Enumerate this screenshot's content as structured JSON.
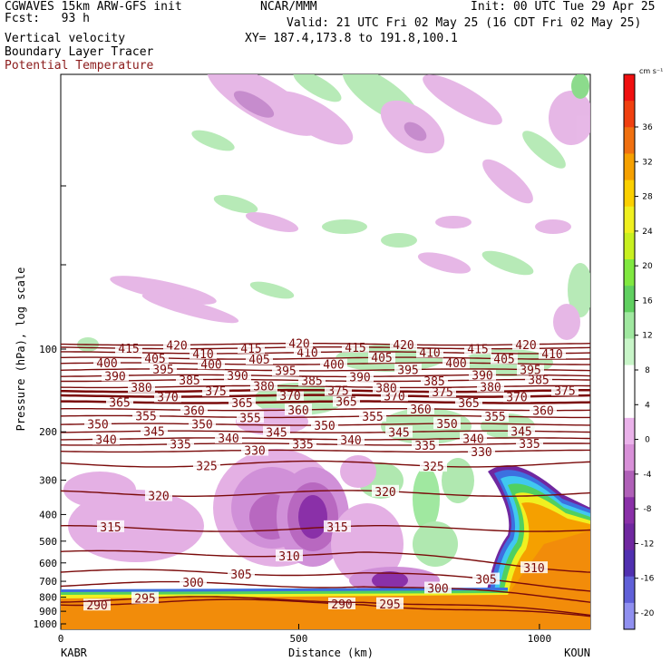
{
  "header": {
    "model": "CGWAVES 15km ARW-GFS init",
    "fcst": "Fcst:   93 h",
    "org": "NCAR/MMM",
    "init": "Init: 00 UTC Tue 29 Apr 25",
    "valid": "Valid: 21 UTC Fri 02 May 25 (16 CDT Fri 02 May 25)",
    "xy": "XY= 187.4,173.8 to 191.8,100.1",
    "field1": "Vertical velocity",
    "field2": "Boundary Layer Tracer",
    "field3": "Potential Temperature"
  },
  "colors": {
    "theta_line": "#7a0a0a",
    "terrain": "#f28c0a",
    "text_red": "#8b1a1a"
  },
  "chart_data": {
    "type": "heatmap",
    "title": "Vertical velocity",
    "xlabel": "Distance (km)",
    "ylabel": "Pressure (hPa), log scale",
    "x_ticks": [
      0,
      500,
      1000
    ],
    "y_ticks": [
      100,
      200,
      300,
      400,
      500,
      600,
      700,
      800,
      900,
      1000
    ],
    "xlim": [
      0,
      1100
    ],
    "end_labels": {
      "left": "KABR",
      "right": "KOUN"
    },
    "colorbar": {
      "unit": "cm s⁻¹",
      "labels": [
        36,
        32,
        28,
        24,
        20,
        16,
        12,
        8,
        4,
        0,
        -4,
        -8,
        -12,
        -16,
        -20
      ],
      "colors": [
        "#f01010",
        "#f04010",
        "#f07010",
        "#f5a000",
        "#fbd000",
        "#f0f020",
        "#c8f020",
        "#80e840",
        "#60d060",
        "#a0e8a0",
        "#c8f5c8",
        "#ffffff",
        "#ffffff",
        "#eab2ea",
        "#d890d8",
        "#b060b8",
        "#8a30a8",
        "#7028a0",
        "#5030b0",
        "#6060d8",
        "#9090f0"
      ]
    },
    "theta_contours": [
      {
        "value": 290,
        "p": 835
      },
      {
        "value": 295,
        "p": 815
      },
      {
        "value": 300,
        "p": 720
      },
      {
        "value": 305,
        "p": 650
      },
      {
        "value": 310,
        "p": 555
      },
      {
        "value": 315,
        "p": 450
      },
      {
        "value": 320,
        "p": 335
      },
      {
        "value": 325,
        "p": 262
      },
      {
        "value": 330,
        "p": 235
      },
      {
        "value": 335,
        "p": 222
      },
      {
        "value": 340,
        "p": 212
      },
      {
        "value": 345,
        "p": 200
      },
      {
        "value": 350,
        "p": 188
      },
      {
        "value": 355,
        "p": 176
      },
      {
        "value": 360,
        "p": 166
      },
      {
        "value": 365,
        "p": 156
      },
      {
        "value": 370,
        "p": 148
      },
      {
        "value": 375,
        "p": 142
      },
      {
        "value": 380,
        "p": 137
      },
      {
        "value": 385,
        "p": 130
      },
      {
        "value": 390,
        "p": 125
      },
      {
        "value": 395,
        "p": 119
      },
      {
        "value": 400,
        "p": 113
      },
      {
        "value": 405,
        "p": 108
      },
      {
        "value": 410,
        "p": 103
      },
      {
        "value": 415,
        "p": 99
      },
      {
        "value": 420,
        "p": 96
      }
    ]
  }
}
